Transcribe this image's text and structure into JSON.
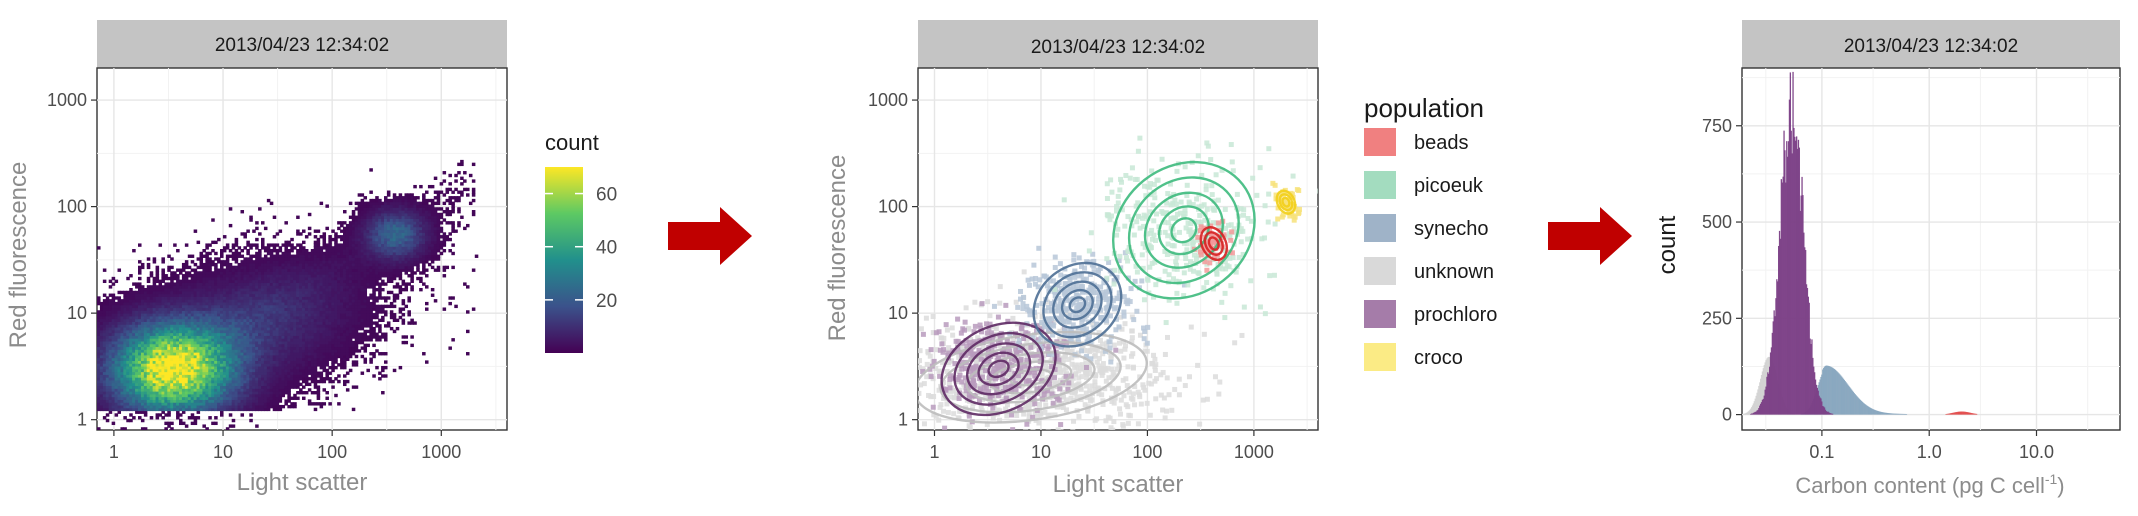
{
  "chart_data": [
    {
      "type": "heatmap",
      "facet_label": "2013/04/23 12:34:02",
      "xlabel": "Light scatter",
      "ylabel": "Red fluorescence",
      "x_scale": "log10",
      "y_scale": "log10",
      "xlim": [
        0.7,
        4000
      ],
      "ylim": [
        0.8,
        2000
      ],
      "x_ticks": [
        "1",
        "10",
        "100",
        "1000"
      ],
      "y_ticks": [
        "1",
        "10",
        "100",
        "1000"
      ],
      "grid": true,
      "legend": {
        "title": "count",
        "placement": "right",
        "type": "colorbar",
        "range": [
          0,
          70
        ],
        "ticks": [
          "20",
          "40",
          "60"
        ],
        "colors": [
          "#440154",
          "#3b528b",
          "#21908c",
          "#5dc963",
          "#fde725"
        ]
      },
      "clusters": [
        {
          "x": 3.5,
          "y": 3.0,
          "sx": 0.36,
          "sy": 0.27,
          "peak": 70
        },
        {
          "x": 20,
          "y": 8,
          "sx": 0.55,
          "sy": 0.33,
          "peak": 10
        },
        {
          "x": 380,
          "y": 55,
          "sx": 0.18,
          "sy": 0.15,
          "peak": 22
        }
      ]
    },
    {
      "type": "scatter",
      "facet_label": "2013/04/23 12:34:02",
      "xlabel": "Light scatter",
      "ylabel": "Red fluorescence",
      "x_scale": "log10",
      "y_scale": "log10",
      "xlim": [
        0.7,
        4000
      ],
      "ylim": [
        0.8,
        2000
      ],
      "x_ticks": [
        "1",
        "10",
        "100",
        "1000"
      ],
      "y_ticks": [
        "1",
        "10",
        "100",
        "1000"
      ],
      "grid": true,
      "legend": {
        "title": "population",
        "placement": "right",
        "entries": [
          {
            "label": "beads",
            "color": "#f08080"
          },
          {
            "label": "picoeuk",
            "color": "#a3dcbf"
          },
          {
            "label": "synecho",
            "color": "#9fb3c8"
          },
          {
            "label": "unknown",
            "color": "#d9d9d9"
          },
          {
            "label": "prochloro",
            "color": "#a57ca9"
          },
          {
            "label": "croco",
            "color": "#fbeb85"
          }
        ]
      },
      "populations": [
        {
          "name": "unknown",
          "color": "#bdbdbd",
          "x": 8,
          "y": 2.5,
          "sx": 0.55,
          "sy": 0.2
        },
        {
          "name": "prochloro",
          "color": "#5e2a64",
          "x": 4,
          "y": 3,
          "sx": 0.28,
          "sy": 0.2
        },
        {
          "name": "synecho",
          "color": "#4e6f95",
          "x": 22,
          "y": 12,
          "sx": 0.22,
          "sy": 0.18
        },
        {
          "name": "picoeuk",
          "color": "#3dba7d",
          "x": 220,
          "y": 60,
          "sx": 0.35,
          "sy": 0.3
        },
        {
          "name": "beads",
          "color": "#d62020",
          "x": 420,
          "y": 45,
          "sx": 0.07,
          "sy": 0.1
        },
        {
          "name": "croco",
          "color": "#f2cf1a",
          "x": 2000,
          "y": 110,
          "sx": 0.05,
          "sy": 0.07
        }
      ]
    },
    {
      "type": "area",
      "facet_label": "2013/04/23 12:34:02",
      "xlabel": "Carbon content (pg C cell",
      "xlabel_superscript": "-1",
      "xlabel_close": ")",
      "ylabel": "count",
      "x_scale": "log10",
      "xlim": [
        0.018,
        60
      ],
      "ylim": [
        -40,
        900
      ],
      "x_ticks": [
        "0.1",
        "1.0",
        "10.0"
      ],
      "y_ticks": [
        "0",
        "250",
        "500",
        "750"
      ],
      "grid": true,
      "series": [
        {
          "name": "prochloro",
          "color": "#7b3f86",
          "center": 0.052,
          "sigma": 0.11,
          "peak": 820
        },
        {
          "name": "unknown",
          "color": "#cfcfcf",
          "center": 0.032,
          "sigma": 0.08,
          "peak": 150
        },
        {
          "name": "synecho",
          "color": "#7fa0ba",
          "center": 0.11,
          "sigma": 0.2,
          "peak": 120
        },
        {
          "name": "beads",
          "color": "#e04040",
          "center": 2.0,
          "sigma": 0.08,
          "peak": 8
        }
      ]
    }
  ]
}
